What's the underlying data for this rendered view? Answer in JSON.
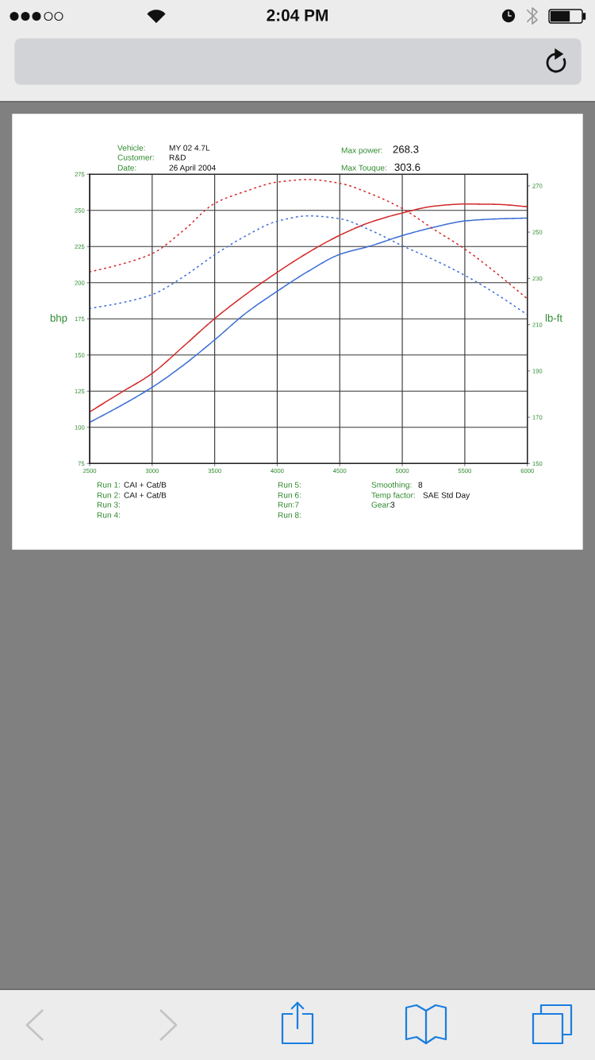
{
  "chart_data": {
    "type": "line",
    "x": [
      2500,
      2750,
      3000,
      3250,
      3500,
      3750,
      4000,
      4250,
      4500,
      4750,
      5000,
      5250,
      5500,
      5750,
      6000
    ],
    "series": [
      {
        "color": "#d42a2a",
        "line_style": "solid",
        "values": [
          110.7,
          124,
          137.3,
          156,
          175.2,
          192,
          207.2,
          221,
          232.8,
          242,
          248.2,
          252.9,
          254.4,
          254.2,
          252.6
        ]
      },
      {
        "color": "#3c6fd6",
        "line_style": "solid",
        "values": [
          103.4,
          115,
          127.7,
          143,
          160.5,
          179,
          194.1,
          208,
          219.6,
          225.5,
          232.6,
          238.3,
          242.7,
          244.1,
          244.7
        ]
      },
      {
        "color": "#d42a2a",
        "line_style": "dotted",
        "axis": "y2",
        "values": [
          232.8,
          236.1,
          240.7,
          250.7,
          262.4,
          267.7,
          271.6,
          272.7,
          271.1,
          266.5,
          260.2,
          251.3,
          242.7,
          232.4,
          221.2
        ]
      },
      {
        "color": "#3c6fd6",
        "line_style": "dotted",
        "axis": "y2",
        "values": [
          217,
          219.4,
          223,
          230.7,
          240.2,
          248.4,
          254.7,
          257,
          255.8,
          250.7,
          244.1,
          238.1,
          231.3,
          223.3,
          214.3
        ]
      }
    ],
    "xlim": [
      2500,
      6000
    ],
    "xticks": [
      2500,
      3000,
      3500,
      4000,
      4500,
      5000,
      5500,
      6000
    ],
    "ylim": [
      75,
      275
    ],
    "yticks": [
      75,
      100,
      125,
      150,
      175,
      200,
      225,
      250,
      275
    ],
    "y2lim": [
      150,
      275
    ],
    "y2ticks": [
      150,
      170,
      190,
      210,
      230,
      250,
      270
    ],
    "ylabel": "bhp",
    "y2label": "lb-ft",
    "grid": true,
    "annotations": [
      "Vehicle:",
      "MY 02 4.7L",
      "Customer:",
      "R&D",
      "Date:",
      "26 April 2004",
      "Max power:",
      "268.3",
      "Max Touque:",
      "303.6",
      "Run 1:",
      "CAI + Cat/B",
      "Run 2:",
      "CAI + Cat/B",
      "Run 3:",
      "Run 4:",
      "Run 5:",
      "Run 6:",
      "Run:7",
      "Run 8:",
      "Smoothing:",
      "8",
      "Temp factor:",
      "SAE Std Day",
      "Gear:",
      "3",
      "2:04 PM"
    ]
  }
}
